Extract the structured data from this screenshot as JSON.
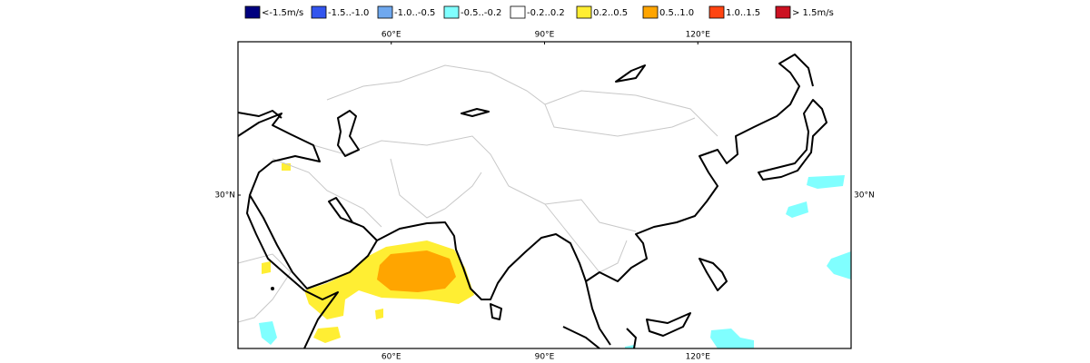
{
  "legend": [
    {
      "label": "<-1.5m/s",
      "color": "#00007f"
    },
    {
      "label": "-1.5..-1.0",
      "color": "#3355ee"
    },
    {
      "label": "-1.0..-0.5",
      "color": "#6fa8ee"
    },
    {
      "label": "-0.5..-0.2",
      "color": "#80ffff"
    },
    {
      "label": "-0.2..0.2",
      "color": "#ffffff"
    },
    {
      "label": "0.2..0.5",
      "color": "#ffee33"
    },
    {
      "label": "0.5..1.0",
      "color": "#ffa500"
    },
    {
      "label": "1.0..1.5",
      "color": "#ff4411"
    },
    {
      "label": "> 1.5m/s",
      "color": "#cc1122"
    }
  ],
  "map": {
    "xlim": [
      30,
      150
    ],
    "ylim": [
      0,
      60
    ],
    "xticks": [
      {
        "value": 60,
        "label": "60°E"
      },
      {
        "value": 90,
        "label": "90°E"
      },
      {
        "value": 120,
        "label": "120°E"
      }
    ],
    "yticks": [
      {
        "value": 30,
        "label": "30°N"
      }
    ]
  }
}
